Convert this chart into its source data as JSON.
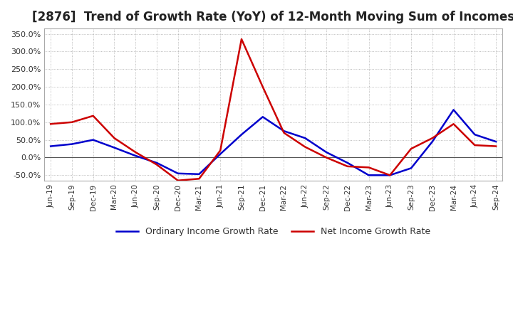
{
  "title": "[2876]  Trend of Growth Rate (YoY) of 12-Month Moving Sum of Incomes",
  "title_fontsize": 12,
  "ylim": [
    -65,
    365
  ],
  "yticks": [
    -50,
    0,
    50,
    100,
    150,
    200,
    250,
    300,
    350
  ],
  "legend_labels": [
    "Ordinary Income Growth Rate",
    "Net Income Growth Rate"
  ],
  "legend_colors": [
    "#0000cc",
    "#cc0000"
  ],
  "background_color": "#ffffff",
  "grid_color": "#aaaaaa",
  "x_labels": [
    "Jun-19",
    "Sep-19",
    "Dec-19",
    "Mar-20",
    "Jun-20",
    "Sep-20",
    "Dec-20",
    "Mar-21",
    "Jun-21",
    "Sep-21",
    "Dec-21",
    "Mar-22",
    "Jun-22",
    "Sep-22",
    "Dec-22",
    "Mar-23",
    "Jun-23",
    "Sep-23",
    "Dec-23",
    "Mar-24",
    "Jun-24",
    "Sep-24"
  ],
  "ordinary_income": [
    32,
    38,
    50,
    28,
    5,
    -15,
    -45,
    -47,
    10,
    65,
    115,
    75,
    55,
    15,
    -15,
    -50,
    -50,
    -30,
    45,
    135,
    65,
    45
  ],
  "net_income": [
    95,
    100,
    118,
    55,
    15,
    -20,
    -65,
    -60,
    20,
    335,
    200,
    70,
    30,
    0,
    -25,
    -28,
    -50,
    25,
    55,
    95,
    35,
    32
  ]
}
